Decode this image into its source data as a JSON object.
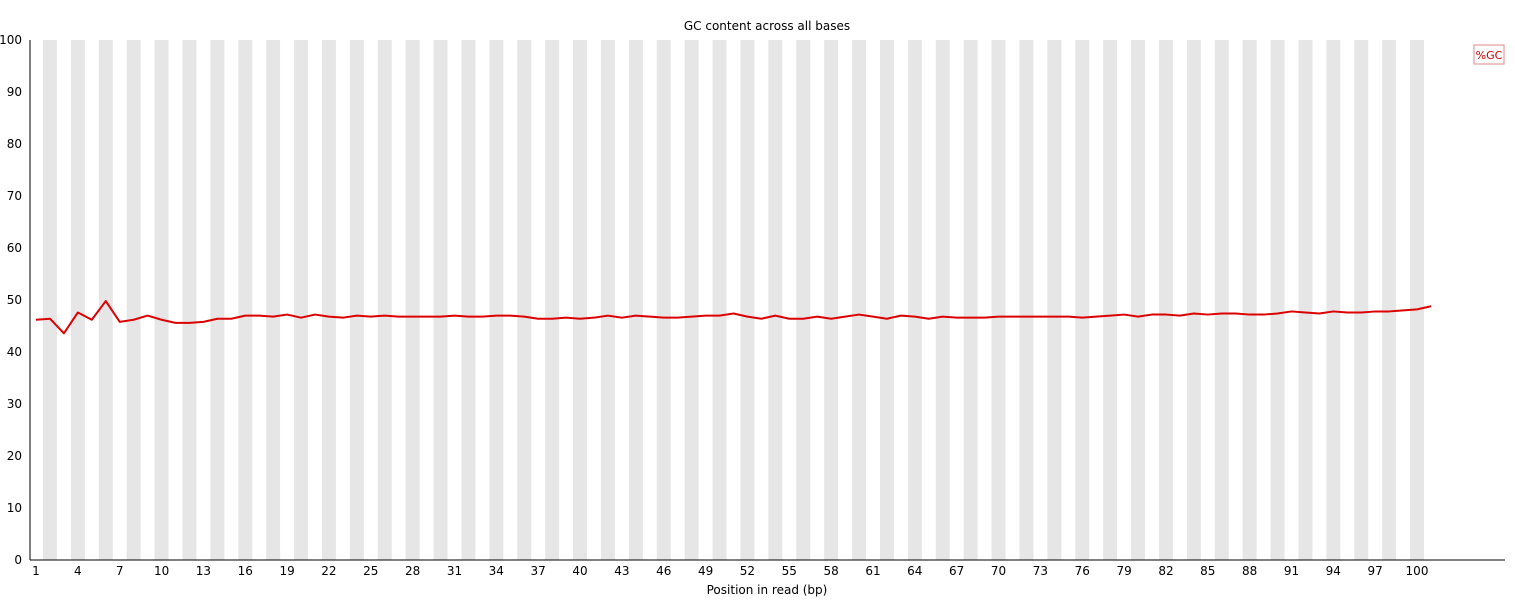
{
  "chart_data": {
    "type": "line",
    "title": "GC content across all bases",
    "xlabel": "Position in read (bp)",
    "ylabel": "",
    "ylim": [
      0,
      100
    ],
    "y_ticks": [
      0,
      10,
      20,
      30,
      40,
      50,
      60,
      70,
      80,
      90,
      100
    ],
    "x_tick_labels": [
      "1",
      "4",
      "7",
      "10",
      "13",
      "16",
      "19",
      "22",
      "25",
      "28",
      "31",
      "34",
      "37",
      "40",
      "43",
      "46",
      "49",
      "52",
      "55",
      "58",
      "61",
      "64",
      "67",
      "70",
      "73",
      "76",
      "79",
      "82",
      "85",
      "88",
      "91",
      "94",
      "97",
      "100"
    ],
    "legend_position": "top-right",
    "background": "alternating grey/white vertical bands",
    "series": [
      {
        "name": "%GC",
        "color": "#dd0000",
        "values": [
          46.2,
          46.4,
          43.6,
          47.6,
          46.2,
          49.8,
          45.8,
          46.2,
          47.0,
          46.2,
          45.6,
          45.6,
          45.8,
          46.4,
          46.4,
          47.0,
          47.0,
          46.8,
          47.2,
          46.6,
          47.2,
          46.8,
          46.6,
          47.0,
          46.8,
          47.0,
          46.8,
          46.8,
          46.8,
          46.8,
          47.0,
          46.8,
          46.8,
          47.0,
          47.0,
          46.8,
          46.4,
          46.4,
          46.6,
          46.4,
          46.6,
          47.0,
          46.6,
          47.0,
          46.8,
          46.6,
          46.6,
          46.8,
          47.0,
          47.0,
          47.4,
          46.8,
          46.4,
          47.0,
          46.4,
          46.4,
          46.8,
          46.4,
          46.8,
          47.2,
          46.8,
          46.4,
          47.0,
          46.8,
          46.4,
          46.8,
          46.6,
          46.6,
          46.6,
          46.8,
          46.8,
          46.8,
          46.8,
          46.8,
          46.8,
          46.6,
          46.8,
          47.0,
          47.2,
          46.8,
          47.2,
          47.2,
          47.0,
          47.4,
          47.2,
          47.4,
          47.4,
          47.2,
          47.2,
          47.4,
          47.8,
          47.6,
          47.4,
          47.8,
          47.6,
          47.6,
          47.8,
          47.8,
          48.0,
          48.2,
          48.8
        ]
      }
    ]
  }
}
